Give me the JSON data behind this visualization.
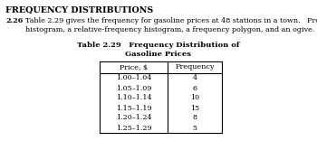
{
  "title_bold": "FREQUENCY DISTRIBUTIONS",
  "problem_number": "2.26",
  "problem_text_line1": "Table 2.29 gives the frequency for gasoline prices at 48 stations in a town.   Present the data in the form of a",
  "problem_text_line2": "histogram, a relative-frequency histogram, a frequency polygon, and an ogive.",
  "table_title_line1": "Table 2.29   Frequency Distribution of",
  "table_title_line2": "Gasoline Prices",
  "col_headers": [
    "Price, $",
    "Frequency"
  ],
  "rows": [
    [
      "1.00–1.04",
      "4"
    ],
    [
      "1.05–1.09",
      "6"
    ],
    [
      "1.10–1.14",
      "10"
    ],
    [
      "1.15–1.19",
      "15"
    ],
    [
      "1.20–1.24",
      "8"
    ],
    [
      "1.25–1.29",
      "5"
    ]
  ],
  "bg_color": "#ffffff",
  "text_color": "#000000",
  "title_fontsize": 6.8,
  "body_fontsize": 5.8,
  "table_title_fontsize": 6.0,
  "table_fontsize": 5.8
}
